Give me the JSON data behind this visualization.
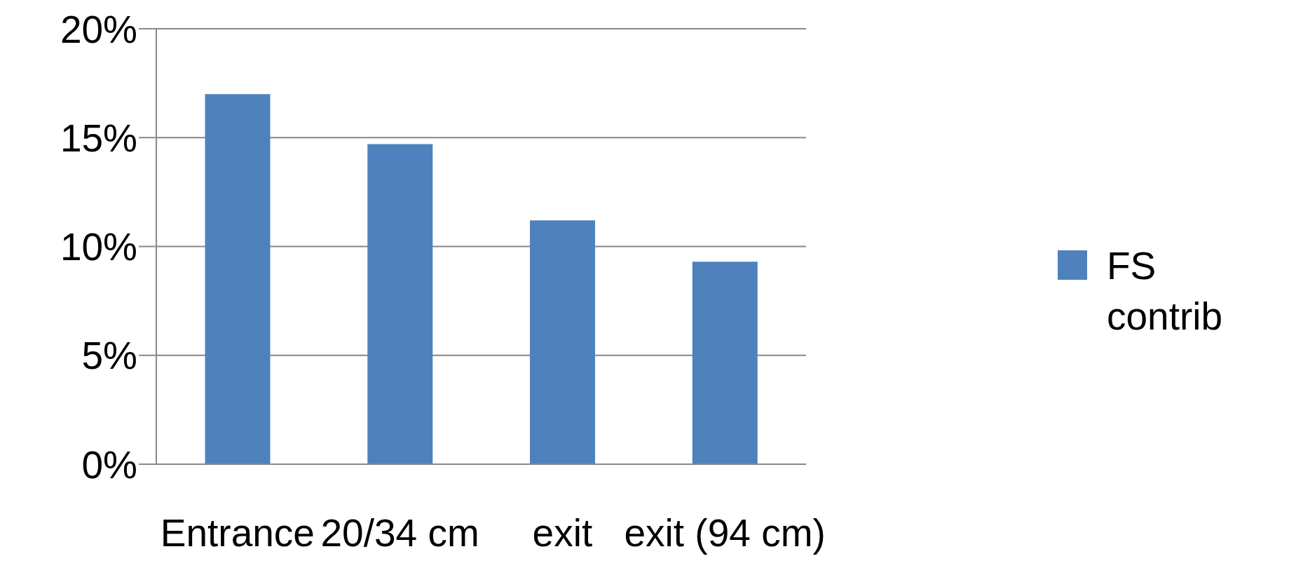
{
  "chart_data": {
    "type": "bar",
    "categories": [
      "Entrance",
      "20/34 cm",
      "exit",
      "exit (94 cm)"
    ],
    "series": [
      {
        "name": "FS contrib",
        "color": "#4f81bd",
        "values": [
          17,
          14.7,
          11.2,
          9.3
        ]
      }
    ],
    "ylim": [
      0,
      20
    ],
    "yticks": [
      {
        "value": 0,
        "label": "0%"
      },
      {
        "value": 5,
        "label": "5%"
      },
      {
        "value": 10,
        "label": "10%"
      },
      {
        "value": 15,
        "label": "15%"
      },
      {
        "value": 20,
        "label": "20%"
      }
    ],
    "grid": "y",
    "legend": "right"
  }
}
